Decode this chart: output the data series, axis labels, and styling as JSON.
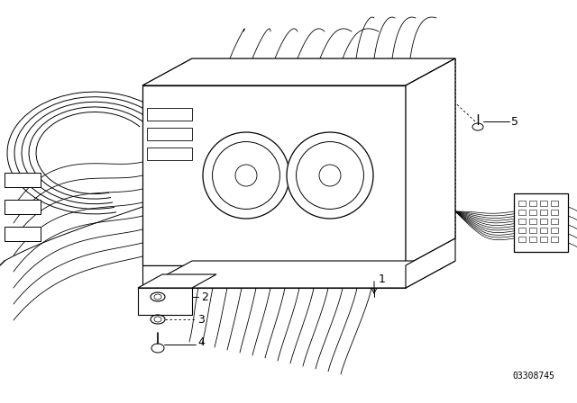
{
  "background_color": "#ffffff",
  "line_color": "#000000",
  "part_number_text": "03308745",
  "label_fontsize": 9,
  "small_fontsize": 7,
  "image_extent": [
    0,
    640,
    0,
    448
  ]
}
